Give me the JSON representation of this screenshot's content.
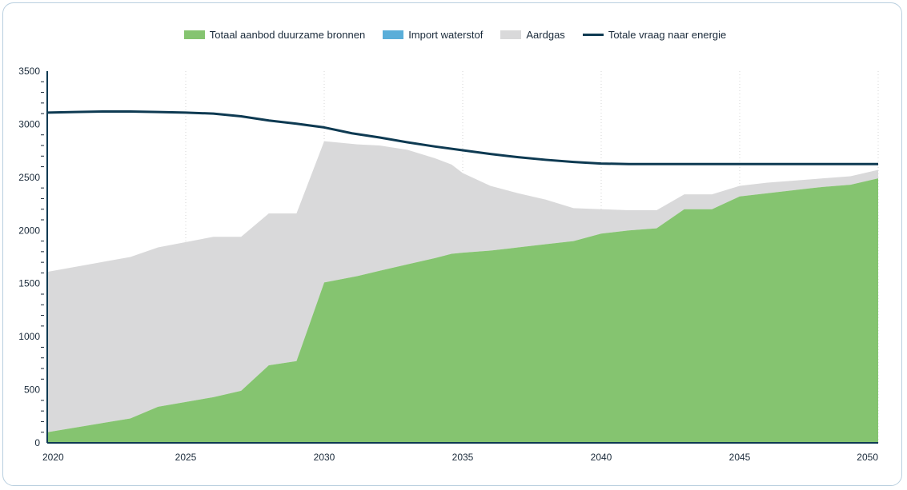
{
  "chart_data": {
    "type": "area",
    "title": "",
    "xlabel": "",
    "ylabel": "",
    "xlim": [
      2020,
      2050
    ],
    "ylim": [
      0,
      3500
    ],
    "x_ticks": [
      "2020",
      "2025",
      "2030",
      "2035",
      "2040",
      "2045",
      "2050"
    ],
    "y_ticks": [
      "0",
      "500",
      "1000",
      "1500",
      "2000",
      "2500",
      "3000",
      "3500"
    ],
    "grid": "vertical dotted",
    "legend_position": "top",
    "series": [
      {
        "name": "Totaal aanbod duurzame bronnen",
        "kind": "area",
        "color": "#85c470",
        "x": [
          2020,
          2023,
          2024,
          2026,
          2027,
          2028,
          2029,
          2030,
          2031.2,
          2032,
          2033,
          2034,
          2034.6,
          2035,
          2036,
          2037,
          2038,
          2039,
          2040,
          2041,
          2042,
          2043,
          2044,
          2045,
          2046,
          2047,
          2048,
          2049,
          2050
        ],
        "values": [
          100,
          230,
          340,
          430,
          490,
          730,
          770,
          1510,
          1570,
          1620,
          1680,
          1740,
          1780,
          1790,
          1810,
          1840,
          1870,
          1900,
          1970,
          2000,
          2020,
          2200,
          2200,
          2320,
          2350,
          2380,
          2410,
          2430,
          2490
        ]
      },
      {
        "name": "Import waterstof",
        "kind": "area",
        "color": "#5aaed9",
        "x": [
          2020,
          2050
        ],
        "values": [
          0,
          0
        ]
      },
      {
        "name": "Aardgas",
        "kind": "area",
        "color": "#d9d9da",
        "x": [
          2020,
          2023,
          2024,
          2026,
          2027,
          2028,
          2029,
          2030,
          2031.2,
          2032,
          2033,
          2034,
          2034.6,
          2035,
          2036,
          2037,
          2038,
          2039,
          2040,
          2041,
          2042,
          2043,
          2044,
          2045,
          2046,
          2047,
          2048,
          2049,
          2050
        ],
        "values": [
          1510,
          1520,
          1500,
          1510,
          1450,
          1430,
          1390,
          1330,
          1240,
          1180,
          1080,
          940,
          840,
          750,
          610,
          510,
          420,
          310,
          230,
          190,
          170,
          140,
          140,
          100,
          100,
          90,
          80,
          80,
          80
        ]
      },
      {
        "name": "Totale vraag naar energie",
        "kind": "line",
        "color": "#0e3a52",
        "x": [
          2020,
          2021,
          2022,
          2023,
          2024,
          2025,
          2026,
          2027,
          2028,
          2029,
          2030,
          2031,
          2032,
          2033,
          2034,
          2035,
          2036,
          2037,
          2038,
          2039,
          2040,
          2041,
          2042,
          2043,
          2044,
          2045,
          2046,
          2047,
          2048,
          2049,
          2050
        ],
        "values": [
          3110,
          3115,
          3120,
          3120,
          3115,
          3110,
          3100,
          3075,
          3035,
          3005,
          2970,
          2915,
          2875,
          2830,
          2790,
          2755,
          2720,
          2690,
          2665,
          2645,
          2630,
          2625,
          2625,
          2625,
          2625,
          2625,
          2625,
          2625,
          2625,
          2625,
          2625
        ]
      }
    ]
  }
}
